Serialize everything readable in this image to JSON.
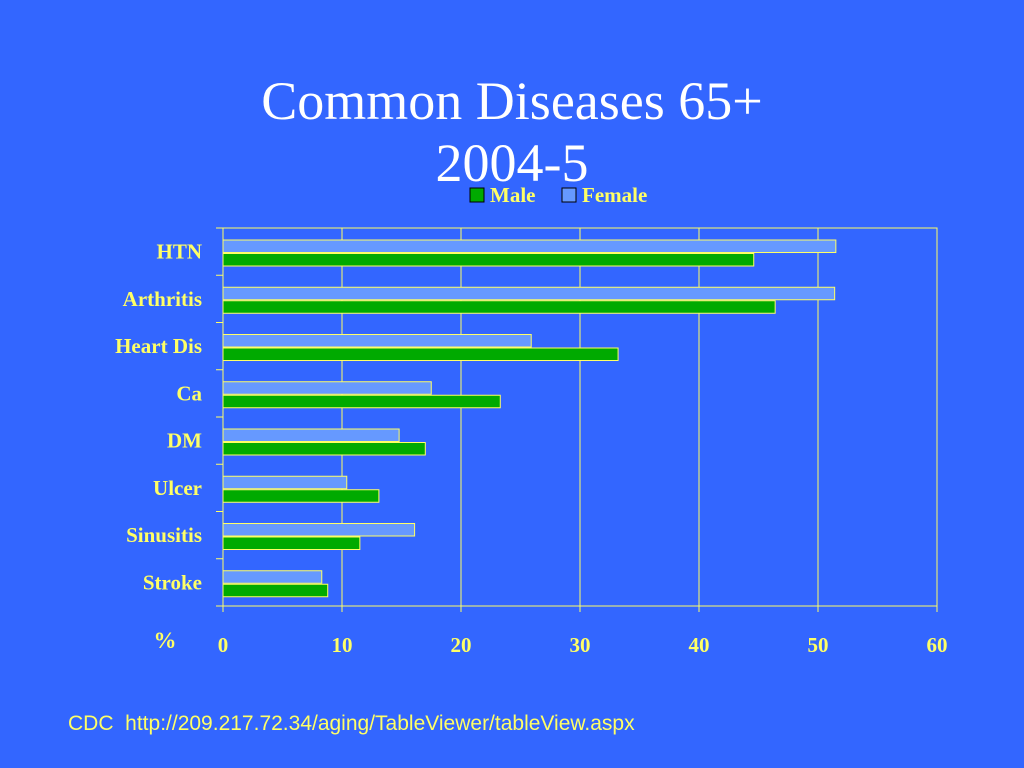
{
  "title_lines": [
    "Common Diseases 65+",
    "2004-5"
  ],
  "source": "CDC  http://209.217.72.34/aging/TableViewer/tableView.aspx",
  "chart_data": {
    "type": "bar",
    "orientation": "horizontal",
    "title": "Common Diseases 65+ 2004-5",
    "xlabel": "%",
    "ylabel": "",
    "xlim": [
      0,
      60
    ],
    "x_ticks": [
      0,
      10,
      20,
      30,
      40,
      50,
      60
    ],
    "grid": true,
    "legend_position": "top",
    "categories": [
      "HTN",
      "Arthritis",
      "Heart Dis",
      "Ca",
      "DM",
      "Ulcer",
      "Sinusitis",
      "Stroke"
    ],
    "series": [
      {
        "name": "Male",
        "color": "#00aa00",
        "values": [
          44.6,
          46.4,
          33.2,
          23.3,
          17.0,
          13.1,
          11.5,
          8.8
        ]
      },
      {
        "name": "Female",
        "color": "#6699ff",
        "values": [
          51.5,
          51.4,
          25.9,
          17.5,
          14.8,
          10.4,
          16.1,
          8.3
        ]
      }
    ],
    "colors": {
      "axis": "#ffff66",
      "text": "#ffff66",
      "bar_border": "#ffff66",
      "background": "#3366ff"
    }
  }
}
